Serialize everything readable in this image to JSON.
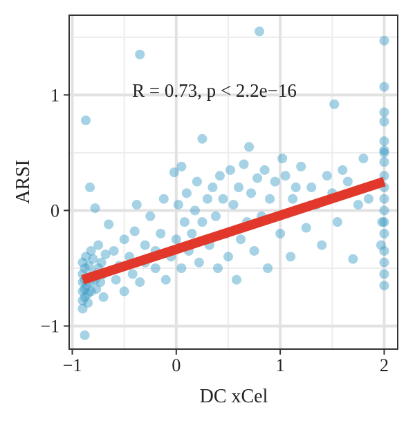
{
  "chart_data": {
    "type": "scatter",
    "xlabel": "DC xCel",
    "ylabel": "ARSI",
    "annotation": "R = 0.73, p < 2.2e−16",
    "xlim": [
      -1.03,
      2.13
    ],
    "ylim": [
      -1.2,
      1.69
    ],
    "xticks": [
      {
        "value": -1,
        "label": "−1"
      },
      0,
      1,
      2
    ],
    "yticks": [
      {
        "value": -1,
        "label": "−1"
      },
      0,
      1
    ],
    "xminor": [
      -0.5,
      0.5,
      1.5
    ],
    "yminor": [
      -0.5,
      0.5,
      1.5
    ],
    "grid": true,
    "series": [
      {
        "color": "#3a9cc6",
        "x": [
          -0.9,
          -0.9,
          -0.9,
          -0.9,
          -0.9,
          -0.9,
          -0.88,
          -0.88,
          -0.88,
          -0.88,
          -0.87,
          -0.86,
          -0.86,
          -0.85,
          -0.85,
          -0.84,
          -0.83,
          -0.82,
          -0.82,
          -0.8,
          -0.8,
          -0.78,
          -0.77,
          -0.75,
          -0.75,
          -0.73,
          -0.72,
          -0.7,
          -0.7,
          -0.68,
          -0.88,
          -0.87,
          -0.35,
          -0.83,
          -0.78,
          -0.65,
          -0.6,
          -0.58,
          -0.55,
          -0.5,
          -0.5,
          -0.45,
          -0.42,
          -0.4,
          -0.38,
          -0.35,
          -0.3,
          -0.3,
          -0.25,
          -0.2,
          -0.2,
          -0.15,
          -0.12,
          -0.1,
          -0.05,
          -0.02,
          0,
          0.02,
          0.05,
          0.05,
          0.08,
          0.1,
          0.12,
          0.15,
          0.18,
          0.2,
          0.22,
          0.25,
          0.25,
          0.3,
          0.32,
          0.35,
          0.38,
          0.4,
          0.42,
          0.45,
          0.48,
          0.5,
          0.52,
          0.55,
          0.58,
          0.6,
          0.62,
          0.65,
          0.68,
          0.7,
          0.72,
          0.75,
          0.78,
          0.8,
          0.82,
          0.85,
          0.88,
          0.9,
          0.95,
          1.0,
          1.02,
          1.05,
          1.1,
          1.12,
          1.15,
          1.2,
          1.25,
          1.3,
          1.35,
          1.4,
          1.45,
          1.5,
          1.52,
          1.55,
          1.6,
          1.65,
          1.7,
          1.75,
          1.8,
          1.85,
          1.97,
          1.98,
          2,
          2,
          2,
          2,
          2,
          2,
          2,
          2,
          2,
          2,
          2,
          2,
          2,
          2,
          2,
          2,
          2,
          2
        ],
        "y": [
          -0.45,
          -0.55,
          -0.62,
          -0.7,
          -0.78,
          -0.85,
          -0.5,
          -0.6,
          -0.68,
          -0.75,
          -0.4,
          -0.58,
          -0.65,
          -0.72,
          -0.8,
          -0.48,
          -0.62,
          -0.35,
          -0.7,
          -0.55,
          -0.42,
          -0.6,
          -0.68,
          -0.5,
          -0.3,
          -0.62,
          -0.45,
          -0.75,
          -0.55,
          -0.38,
          -1.08,
          0.78,
          1.35,
          0.2,
          0.02,
          -0.12,
          -0.35,
          -0.6,
          -0.48,
          -0.25,
          -0.7,
          -0.4,
          -0.55,
          -0.18,
          0.05,
          -0.62,
          -0.45,
          -0.3,
          -0.05,
          -0.5,
          -0.35,
          -0.2,
          0.1,
          -0.6,
          -0.4,
          0.33,
          -0.25,
          0.05,
          -0.5,
          0.38,
          -0.1,
          0.15,
          -0.35,
          -0.2,
          0,
          0.25,
          -0.45,
          0.62,
          -0.1,
          0.1,
          -0.3,
          0.2,
          -0.05,
          -0.5,
          0.3,
          0.1,
          -0.2,
          -0.4,
          0.35,
          0.05,
          -0.6,
          0.2,
          -0.25,
          0.4,
          -0.1,
          0.55,
          0.15,
          -0.35,
          0.28,
          1.55,
          -0.05,
          0.35,
          -0.5,
          0.1,
          0.25,
          -0.2,
          0.45,
          0.3,
          -0.4,
          0.1,
          0.2,
          0.38,
          -0.15,
          0.2,
          0.05,
          -0.3,
          0.3,
          0.15,
          0.92,
          -0.1,
          0.35,
          0.25,
          -0.42,
          0.05,
          0.45,
          0.1,
          -0.3,
          -0.1,
          1.47,
          1.07,
          0.77,
          0.6,
          0.5,
          0.42,
          0.3,
          0.2,
          0.1,
          0,
          -0.1,
          -0.2,
          -0.35,
          -0.45,
          -0.55,
          -0.65,
          0.52,
          0.85
        ]
      }
    ],
    "fit": {
      "color": "#e2382b",
      "x": [
        -0.9,
        2
      ],
      "y": [
        -0.6,
        0.25
      ]
    }
  }
}
